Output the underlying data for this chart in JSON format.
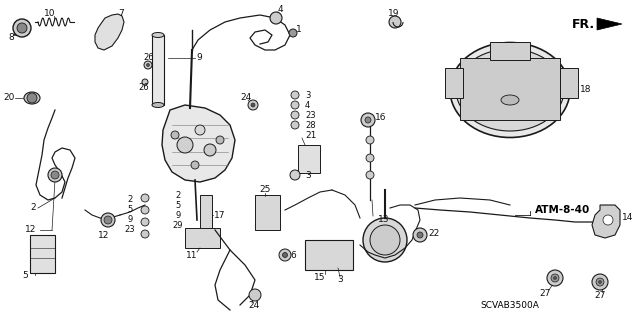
{
  "background": "#f5f5f0",
  "line_color": "#1a1a1a",
  "label_color": "#111111",
  "label_fontsize": 6.5,
  "fr_text": "FR.",
  "atm_text": "ATM-8-40",
  "scvab_text": "SCVAB3500A",
  "fig_w": 6.4,
  "fig_h": 3.19,
  "dpi": 100
}
